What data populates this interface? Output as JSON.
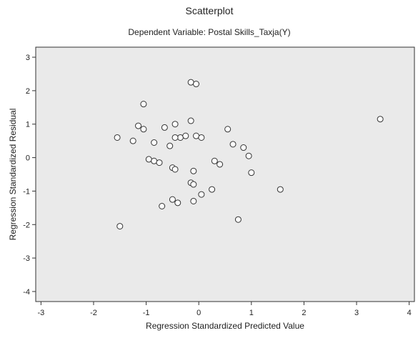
{
  "chart_data": {
    "type": "scatter",
    "title": "Scatterplot",
    "subtitle": "Dependent Variable: Postal Skills_Taxja(Y)",
    "xlabel": "Regression Standardized Predicted Value",
    "ylabel": "Regression Standardized Residual",
    "xlim": [
      -3.1,
      4.1
    ],
    "ylim": [
      -4.3,
      3.3
    ],
    "x_ticks": [
      -3,
      -2,
      -1,
      0,
      1,
      2,
      3,
      4
    ],
    "y_ticks": [
      -4,
      -3,
      -2,
      -1,
      0,
      1,
      2,
      3
    ],
    "x_tick_labels": [
      "-3",
      "-2",
      "-1",
      "0",
      "1",
      "2",
      "3",
      "4"
    ],
    "y_tick_labels": [
      "-4",
      "-3",
      "-2",
      "-1",
      "0",
      "1",
      "2",
      "3"
    ],
    "grid": false,
    "colors": {
      "plot_background": "#eaeaea",
      "plot_border": "#333333",
      "marker_fill": "#ffffff",
      "marker_stroke": "#333333"
    },
    "marker": "open-circle",
    "points": [
      {
        "x": -0.15,
        "y": 2.25
      },
      {
        "x": -0.05,
        "y": 2.2
      },
      {
        "x": -1.05,
        "y": 1.6
      },
      {
        "x": -1.15,
        "y": 0.95
      },
      {
        "x": -1.05,
        "y": 0.85
      },
      {
        "x": -0.65,
        "y": 0.9
      },
      {
        "x": -0.45,
        "y": 1.0
      },
      {
        "x": -0.15,
        "y": 1.1
      },
      {
        "x": -0.05,
        "y": 0.65
      },
      {
        "x": 0.05,
        "y": 0.6
      },
      {
        "x": -0.35,
        "y": 0.6
      },
      {
        "x": -0.85,
        "y": 0.45
      },
      {
        "x": -1.25,
        "y": 0.5
      },
      {
        "x": -1.55,
        "y": 0.6
      },
      {
        "x": -0.55,
        "y": 0.35
      },
      {
        "x": -0.45,
        "y": 0.6
      },
      {
        "x": -0.25,
        "y": 0.65
      },
      {
        "x": 0.55,
        "y": 0.85
      },
      {
        "x": 0.65,
        "y": 0.4
      },
      {
        "x": 0.85,
        "y": 0.3
      },
      {
        "x": 0.95,
        "y": 0.05
      },
      {
        "x": -0.95,
        "y": -0.05
      },
      {
        "x": -0.85,
        "y": -0.1
      },
      {
        "x": -0.75,
        "y": -0.15
      },
      {
        "x": -0.5,
        "y": -0.3
      },
      {
        "x": -0.45,
        "y": -0.35
      },
      {
        "x": -0.1,
        "y": -0.4
      },
      {
        "x": 0.3,
        "y": -0.1
      },
      {
        "x": 0.4,
        "y": -0.2
      },
      {
        "x": 1.0,
        "y": -0.45
      },
      {
        "x": -0.15,
        "y": -0.75
      },
      {
        "x": -0.1,
        "y": -0.8
      },
      {
        "x": 0.25,
        "y": -0.95
      },
      {
        "x": 0.05,
        "y": -1.1
      },
      {
        "x": -0.5,
        "y": -1.25
      },
      {
        "x": -0.4,
        "y": -1.35
      },
      {
        "x": -0.1,
        "y": -1.3
      },
      {
        "x": -0.7,
        "y": -1.45
      },
      {
        "x": 0.75,
        "y": -1.85
      },
      {
        "x": -1.5,
        "y": -2.05
      },
      {
        "x": 1.55,
        "y": -0.95
      },
      {
        "x": 3.45,
        "y": 1.15
      }
    ]
  }
}
